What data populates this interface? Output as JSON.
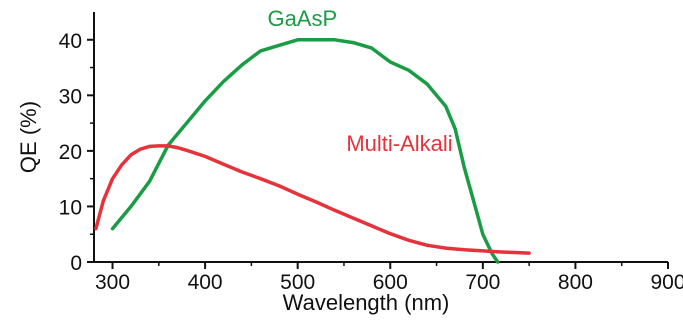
{
  "chart_data": {
    "type": "line",
    "xlabel": "Wavelength (nm)",
    "ylabel": "QE (%)",
    "xlim": [
      280,
      900
    ],
    "ylim": [
      0,
      45
    ],
    "x_ticks": [
      300,
      400,
      500,
      600,
      700,
      800,
      900
    ],
    "y_ticks": [
      0,
      10,
      20,
      30,
      40
    ],
    "x_tick_labels": [
      "300",
      "400",
      "500",
      "600",
      "700",
      "800",
      "900"
    ],
    "y_tick_labels": [
      "0",
      "10",
      "20",
      "30",
      "40"
    ],
    "grid": false,
    "legend": "none",
    "series": [
      {
        "name": "GaAsP",
        "color": "#1a9c45",
        "x": [
          300,
          320,
          340,
          360,
          380,
          400,
          420,
          440,
          460,
          480,
          500,
          520,
          540,
          560,
          580,
          600,
          620,
          640,
          660,
          670,
          680,
          690,
          700,
          710,
          716
        ],
        "y": [
          6,
          10,
          14.5,
          21,
          25,
          29,
          32.5,
          35.5,
          38,
          39,
          40,
          40,
          40,
          39.5,
          38.5,
          36,
          34.5,
          32,
          28,
          24,
          17,
          11,
          5,
          1.5,
          0
        ]
      },
      {
        "name": "Multi-Alkali",
        "color": "#e5323b",
        "x": [
          282,
          290,
          300,
          310,
          320,
          330,
          340,
          350,
          360,
          370,
          380,
          400,
          420,
          440,
          460,
          480,
          500,
          520,
          540,
          560,
          580,
          600,
          620,
          640,
          660,
          680,
          700,
          720,
          750
        ],
        "y": [
          6,
          11,
          15,
          17.5,
          19.3,
          20.3,
          20.8,
          20.9,
          20.9,
          20.6,
          20.1,
          19,
          17.6,
          16.2,
          15,
          13.7,
          12.2,
          10.8,
          9.3,
          7.9,
          6.5,
          5.1,
          3.9,
          3,
          2.5,
          2.2,
          2,
          1.8,
          1.6
        ]
      }
    ],
    "annotations": [
      {
        "text": "GaAsP",
        "series": "GaAsP",
        "x": 505,
        "y": 42.5,
        "color": "#1a9c45"
      },
      {
        "text": "Multi-Alkali",
        "series": "Multi-Alkali",
        "x": 610,
        "y": 20,
        "color": "#e5323b"
      }
    ]
  }
}
